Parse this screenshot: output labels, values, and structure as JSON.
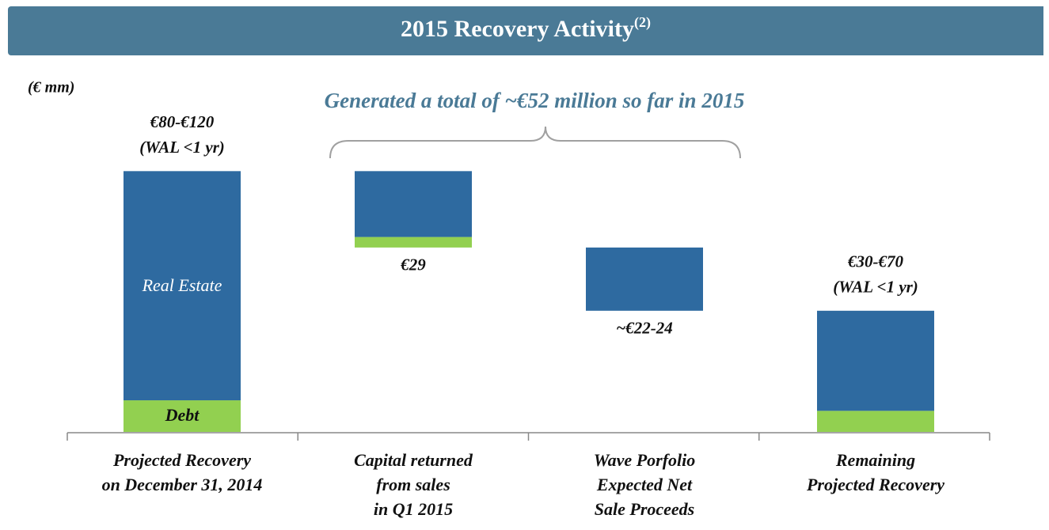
{
  "chart_data": {
    "type": "waterfall",
    "title": "2015 Recovery Activity",
    "title_note": "(2)",
    "unit_label": "(€ mm)",
    "annotation": "Generated a total of ~€52 million so far in 2015",
    "categories": [
      [
        "Projected Recovery",
        "on December 31, 2014"
      ],
      [
        "Capital returned",
        "from sales",
        "in Q1 2015"
      ],
      [
        "Wave Porfolio",
        "Expected Net",
        "Sale Proceeds"
      ],
      [
        "Remaining",
        "Projected Recovery"
      ]
    ],
    "kind": [
      "total",
      "decrease",
      "decrease",
      "total"
    ],
    "series": [
      {
        "name": "Debt",
        "color": "#92d050",
        "values": [
          12,
          4,
          null,
          8
        ]
      },
      {
        "name": "Real Estate",
        "color": "#2e6aa0",
        "values": [
          87,
          25,
          24,
          38
        ]
      }
    ],
    "value_labels": [
      "€80-€120",
      "€29",
      "~€22-24",
      "€30-€70"
    ],
    "bar_notes": [
      "(WAL <1 yr)",
      null,
      null,
      "(WAL <1 yr)"
    ]
  }
}
